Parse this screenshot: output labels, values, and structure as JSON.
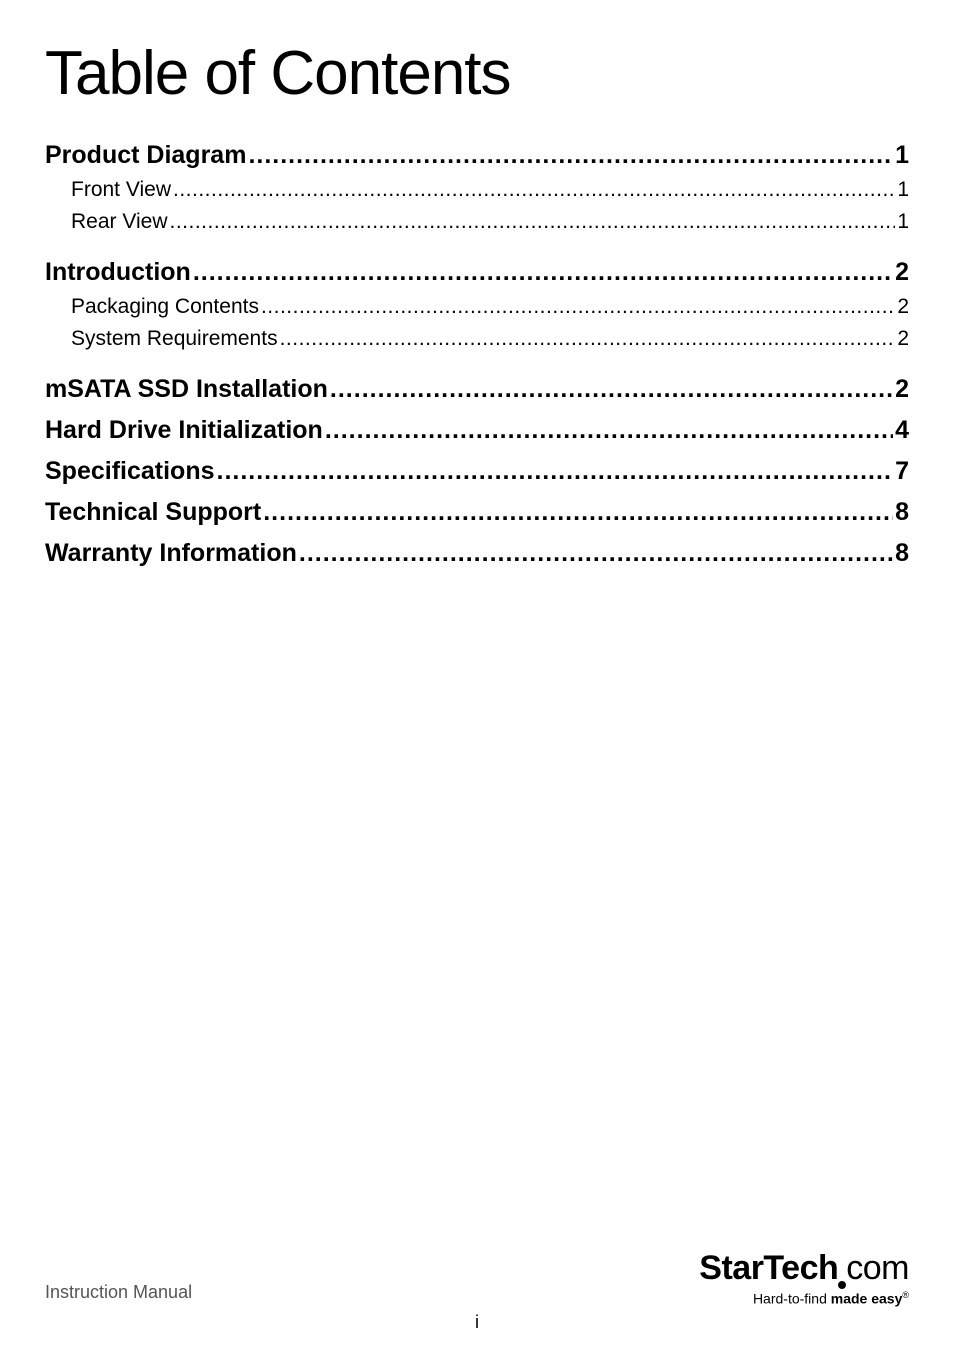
{
  "title": "Table of Contents",
  "toc": [
    {
      "label": "Product Diagram",
      "page": "1",
      "children": [
        {
          "label": "Front View",
          "page": "1"
        },
        {
          "label": "Rear View",
          "page": "1"
        }
      ]
    },
    {
      "label": "Introduction",
      "page": "2",
      "children": [
        {
          "label": "Packaging Contents",
          "page": "2"
        },
        {
          "label": "System Requirements",
          "page": "2"
        }
      ]
    },
    {
      "label": "mSATA SSD Installation",
      "page": "2",
      "children": []
    },
    {
      "label": "Hard Drive Initialization",
      "page": "4",
      "children": []
    },
    {
      "label": "Specifications",
      "page": "7",
      "children": []
    },
    {
      "label": "Technical Support",
      "page": "8",
      "children": []
    },
    {
      "label": "Warranty Information",
      "page": "8",
      "children": []
    }
  ],
  "footer": {
    "left": "Instruction Manual",
    "page_number": "i",
    "logo": {
      "brand_bold": "StarTech",
      "brand_rest": "com",
      "tagline_normal": "Hard-to-find ",
      "tagline_bold": "made easy",
      "reg": "®"
    }
  },
  "styling": {
    "page_bg": "#ffffff",
    "text_color": "#000000",
    "footer_text_color": "#555555",
    "title_fontsize": 62,
    "level1_fontsize": 25,
    "level2_fontsize": 21,
    "footer_fontsize": 18,
    "logo_fontsize": 34,
    "tagline_fontsize": 14
  }
}
